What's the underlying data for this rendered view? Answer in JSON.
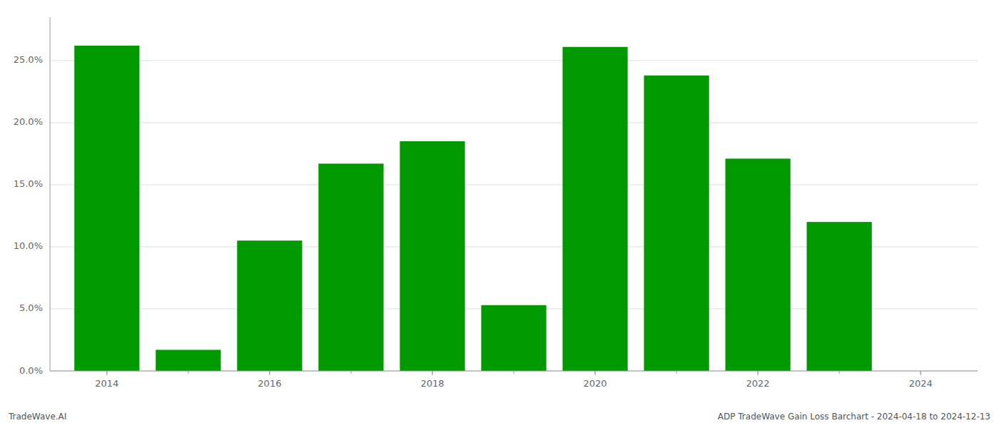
{
  "chart_data": {
    "type": "bar",
    "x": [
      2014,
      2015,
      2016,
      2017,
      2018,
      2019,
      2020,
      2021,
      2022,
      2023,
      2024
    ],
    "values": [
      0.262,
      0.017,
      0.105,
      0.167,
      0.185,
      0.053,
      0.261,
      0.238,
      0.171,
      0.12,
      0.0
    ],
    "color": "#009900",
    "xlim": [
      2013.3,
      2024.7
    ],
    "xticks": [
      2014,
      2016,
      2018,
      2020,
      2022,
      2024
    ],
    "ylim": [
      0,
      0.285
    ],
    "yticks": [
      {
        "value": 0.0,
        "label": "0.0%"
      },
      {
        "value": 0.05,
        "label": "5.0%"
      },
      {
        "value": 0.1,
        "label": "10.0%"
      },
      {
        "value": 0.15,
        "label": "15.0%"
      },
      {
        "value": 0.2,
        "label": "20.0%"
      },
      {
        "value": 0.25,
        "label": "25.0%"
      }
    ],
    "grid": true,
    "annotations": [
      "TradeWave.AI",
      "ADP TradeWave Gain Loss Barchart - 2024-04-18 to 2024-12-13"
    ]
  }
}
